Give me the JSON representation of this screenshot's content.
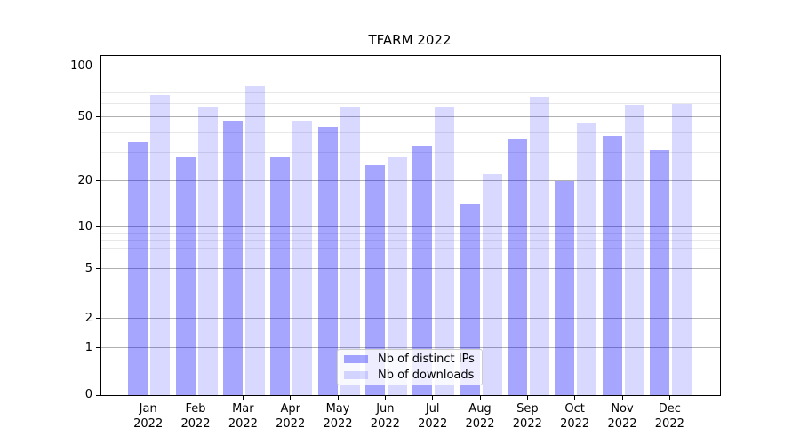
{
  "title": "TFARM 2022",
  "colors": {
    "bar_base": "#0000ff",
    "ips_alpha": 0.35,
    "downloads_alpha": 0.15,
    "ips_solid": "#a6a6ff",
    "downloads_solid": "#d9d9ff",
    "grid_major": "#b0b0b0",
    "grid_minor": "#e8e8e8",
    "axis": "#000000"
  },
  "legend": {
    "items": [
      {
        "label": "Nb of distinct IPs",
        "series": "ips"
      },
      {
        "label": "Nb of downloads",
        "series": "downloads"
      }
    ]
  },
  "chart_data": {
    "type": "bar",
    "title": "TFARM 2022",
    "categories": [
      "Jan",
      "Feb",
      "Mar",
      "Apr",
      "May",
      "Jun",
      "Jul",
      "Aug",
      "Sep",
      "Oct",
      "Nov",
      "Dec"
    ],
    "category_year": "2022",
    "series": [
      {
        "name": "Nb of distinct IPs",
        "values": [
          35,
          28,
          47,
          28,
          43,
          25,
          33,
          14,
          36,
          20,
          38,
          31
        ]
      },
      {
        "name": "Nb of downloads",
        "values": [
          68,
          58,
          77,
          47,
          57,
          28,
          57,
          22,
          66,
          46,
          59,
          60
        ]
      }
    ],
    "yscale": "symlog",
    "y_ticks": [
      0,
      1,
      2,
      5,
      10,
      20,
      50,
      100
    ],
    "ylim": [
      0,
      120
    ],
    "grid": "both",
    "legend_position": "lower center"
  }
}
